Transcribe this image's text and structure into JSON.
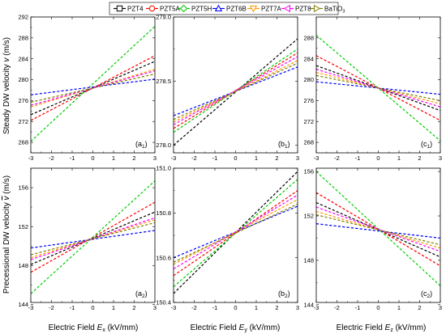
{
  "legend": [
    {
      "name": "PZT4",
      "color": "#000000",
      "marker": "square"
    },
    {
      "name": "PZT5A",
      "color": "#ff0000",
      "marker": "circle"
    },
    {
      "name": "PZT5H",
      "color": "#00cc00",
      "marker": "diamond"
    },
    {
      "name": "PZT6B",
      "color": "#0000ff",
      "marker": "triangle-up"
    },
    {
      "name": "PZT7A",
      "color": "#ff9900",
      "marker": "triangle-down"
    },
    {
      "name": "PZT8",
      "color": "#ff00ff",
      "marker": "triangle-left"
    },
    {
      "name": "BaTiO",
      "sub": "3",
      "color": "#808000",
      "marker": "triangle-right"
    }
  ],
  "labels": {
    "row1_ylabel": "Steady DW velocity",
    "row1_ysym": "v",
    "row1_yunit": "(m/s)",
    "row2_ylabel": "Precessional DW velocity",
    "row2_ysym": "v",
    "row2_yunit": "(m/s)",
    "xlabel_prefix": "Electric Field",
    "xlabel_sym": "E",
    "xlabel_unit": "(kV/mm)",
    "xsubs": [
      "x",
      "y",
      "z"
    ]
  },
  "chart_data": [
    {
      "id": "a1",
      "panel_label": "a",
      "panel_sub": "1",
      "type": "line",
      "xlim": [
        -3,
        3
      ],
      "ylim": [
        266,
        292
      ],
      "xticks": [
        -3,
        -2,
        -1,
        0,
        1,
        2,
        3
      ],
      "yticks": [
        268,
        272,
        276,
        280,
        284,
        288,
        292
      ],
      "series": [
        {
          "name": "PZT4",
          "x": [
            -3,
            3
          ],
          "y": [
            273.3,
            283.5
          ]
        },
        {
          "name": "PZT5A",
          "x": [
            -3,
            3
          ],
          "y": [
            272.2,
            284.6
          ]
        },
        {
          "name": "PZT5H",
          "x": [
            -3,
            3
          ],
          "y": [
            268.2,
            290.2
          ]
        },
        {
          "name": "PZT6B",
          "x": [
            -3,
            3
          ],
          "y": [
            277.1,
            280.1
          ]
        },
        {
          "name": "PZT7A",
          "x": [
            -3,
            3
          ],
          "y": [
            274.8,
            282.0
          ]
        },
        {
          "name": "PZT8",
          "x": [
            -3,
            3
          ],
          "y": [
            275.1,
            281.7
          ]
        },
        {
          "name": "BaTiO3",
          "x": [
            -3,
            3
          ],
          "y": [
            275.7,
            281.1
          ]
        }
      ]
    },
    {
      "id": "b1",
      "panel_label": "b",
      "panel_sub": "1",
      "type": "line",
      "xlim": [
        -3,
        3
      ],
      "ylim": [
        277.94,
        279.0
      ],
      "xticks": [
        -3,
        -2,
        -1,
        0,
        1,
        2,
        3
      ],
      "yticks": [
        278.0,
        278.5,
        279.0
      ],
      "series": [
        {
          "name": "PZT4",
          "x": [
            -3,
            3
          ],
          "y": [
            278.0,
            278.83
          ]
        },
        {
          "name": "PZT5A",
          "x": [
            -3,
            3
          ],
          "y": [
            278.13,
            278.72
          ]
        },
        {
          "name": "PZT5H",
          "x": [
            -3,
            3
          ],
          "y": [
            278.1,
            278.75
          ]
        },
        {
          "name": "PZT6B",
          "x": [
            -3,
            3
          ],
          "y": [
            278.23,
            278.61
          ]
        },
        {
          "name": "PZT7A",
          "x": [
            -3,
            3
          ],
          "y": [
            278.18,
            278.66
          ]
        },
        {
          "name": "PZT8",
          "x": [
            -3,
            3
          ],
          "y": [
            278.16,
            278.69
          ]
        },
        {
          "name": "BaTiO3",
          "x": [
            -3,
            3
          ],
          "y": [
            278.2,
            278.64
          ]
        }
      ]
    },
    {
      "id": "c1",
      "panel_label": "c",
      "panel_sub": "1",
      "type": "line",
      "xlim": [
        -3,
        3
      ],
      "ylim": [
        266,
        292
      ],
      "xticks": [
        -3,
        -2,
        -1,
        0,
        1,
        2,
        3
      ],
      "yticks": [
        268,
        272,
        276,
        280,
        284,
        288
      ],
      "series": [
        {
          "name": "PZT4",
          "x": [
            -3,
            3
          ],
          "y": [
            282.7,
            274.1
          ]
        },
        {
          "name": "PZT5A",
          "x": [
            -3,
            3
          ],
          "y": [
            284.6,
            272.2
          ]
        },
        {
          "name": "PZT5H",
          "x": [
            -3,
            3
          ],
          "y": [
            288.5,
            268.3
          ]
        },
        {
          "name": "PZT6B",
          "x": [
            -3,
            3
          ],
          "y": [
            279.6,
            277.2
          ]
        },
        {
          "name": "PZT7A",
          "x": [
            -3,
            3
          ],
          "y": [
            281.4,
            275.4
          ]
        },
        {
          "name": "PZT8",
          "x": [
            -3,
            3
          ],
          "y": [
            282.0,
            274.8
          ]
        },
        {
          "name": "BaTiO3",
          "x": [
            -3,
            3
          ],
          "y": [
            280.8,
            276.0
          ]
        }
      ]
    },
    {
      "id": "a2",
      "panel_label": "a",
      "panel_sub": "2",
      "type": "line",
      "xlim": [
        -3,
        3
      ],
      "ylim": [
        144.2,
        158.0
      ],
      "xticks": [
        -3,
        -2,
        -1,
        0,
        1,
        2,
        3
      ],
      "yticks": [
        144,
        148,
        152,
        156
      ],
      "series": [
        {
          "name": "PZT4",
          "x": [
            -3,
            3
          ],
          "y": [
            148.1,
            153.5
          ]
        },
        {
          "name": "PZT5A",
          "x": [
            -3,
            3
          ],
          "y": [
            147.3,
            154.5
          ]
        },
        {
          "name": "PZT5H",
          "x": [
            -3,
            3
          ],
          "y": [
            145.1,
            156.7
          ]
        },
        {
          "name": "PZT6B",
          "x": [
            -3,
            3
          ],
          "y": [
            149.8,
            151.6
          ]
        },
        {
          "name": "PZT7A",
          "x": [
            -3,
            3
          ],
          "y": [
            148.8,
            152.7
          ]
        },
        {
          "name": "PZT8",
          "x": [
            -3,
            3
          ],
          "y": [
            148.6,
            152.9
          ]
        },
        {
          "name": "BaTiO3",
          "x": [
            -3,
            3
          ],
          "y": [
            149.1,
            152.4
          ]
        }
      ]
    },
    {
      "id": "b2",
      "panel_label": "b",
      "panel_sub": "2",
      "type": "line",
      "xlim": [
        -3,
        3
      ],
      "ylim": [
        150.4,
        151.0
      ],
      "xticks": [
        -3,
        -2,
        -1,
        0,
        1,
        2,
        3
      ],
      "yticks": [
        150.4,
        150.6,
        150.8,
        151.0
      ],
      "series": [
        {
          "name": "PZT4",
          "x": [
            -3,
            3
          ],
          "y": [
            150.44,
            150.985
          ]
        },
        {
          "name": "PZT5A",
          "x": [
            -3,
            3
          ],
          "y": [
            150.52,
            150.9
          ]
        },
        {
          "name": "PZT5H",
          "x": [
            -3,
            3
          ],
          "y": [
            150.47,
            150.95
          ]
        },
        {
          "name": "PZT6B",
          "x": [
            -3,
            3
          ],
          "y": [
            150.6,
            150.83
          ]
        },
        {
          "name": "PZT7A",
          "x": [
            -3,
            3
          ],
          "y": [
            150.57,
            150.86
          ]
        },
        {
          "name": "PZT8",
          "x": [
            -3,
            3
          ],
          "y": [
            150.55,
            150.88
          ]
        },
        {
          "name": "BaTiO3",
          "x": [
            -3,
            3
          ],
          "y": [
            150.58,
            150.84
          ]
        }
      ]
    },
    {
      "id": "c2",
      "panel_label": "c",
      "panel_sub": "2",
      "type": "line",
      "xlim": [
        -3,
        3
      ],
      "ylim": [
        144.2,
        156.3
      ],
      "xticks": [
        -3,
        -2,
        -1,
        0,
        1,
        2,
        3
      ],
      "yticks": [
        144,
        148,
        152,
        156
      ],
      "series": [
        {
          "name": "PZT4",
          "x": [
            -3,
            3
          ],
          "y": [
            153.2,
            148.3
          ]
        },
        {
          "name": "PZT5A",
          "x": [
            -3,
            3
          ],
          "y": [
            154.1,
            147.5
          ]
        },
        {
          "name": "PZT5H",
          "x": [
            -3,
            3
          ],
          "y": [
            156.0,
            145.7
          ]
        },
        {
          "name": "PZT6B",
          "x": [
            -3,
            3
          ],
          "y": [
            151.3,
            150.0
          ]
        },
        {
          "name": "PZT7A",
          "x": [
            -3,
            3
          ],
          "y": [
            152.4,
            149.1
          ]
        },
        {
          "name": "PZT8",
          "x": [
            -3,
            3
          ],
          "y": [
            152.8,
            148.8
          ]
        },
        {
          "name": "BaTiO3",
          "x": [
            -3,
            3
          ],
          "y": [
            152.1,
            149.4
          ]
        }
      ]
    }
  ]
}
